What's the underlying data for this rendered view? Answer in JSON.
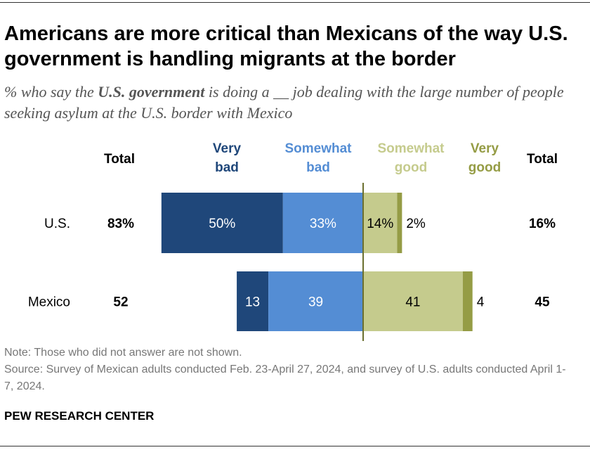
{
  "title": "Americans are more critical than Mexicans of the way U.S. government is handling migrants at the border",
  "subtitle": {
    "pre": "% who say the ",
    "bold": "U.S. government",
    "post": " is doing a __ job dealing with the large number of people seeking asylum at the U.S. border with Mexico"
  },
  "chart_data": {
    "type": "bar",
    "orientation": "horizontal-diverging",
    "categories": [
      "U.S.",
      "Mexico"
    ],
    "series": [
      {
        "name": "Very bad",
        "values": [
          50,
          13
        ],
        "labels": [
          "50%",
          "13"
        ],
        "color": "#1f477a"
      },
      {
        "name": "Somewhat bad",
        "values": [
          33,
          39
        ],
        "labels": [
          "33%",
          "39"
        ],
        "color": "#548dd4"
      },
      {
        "name": "Somewhat good",
        "values": [
          14,
          41
        ],
        "labels": [
          "14%",
          "41"
        ],
        "color": "#c5cb8d"
      },
      {
        "name": "Very good",
        "values": [
          2,
          4
        ],
        "labels": [
          "2%",
          "4"
        ],
        "color": "#959c45"
      }
    ],
    "totals_header": "Total",
    "total_bad": [
      "83%",
      "52"
    ],
    "total_good": [
      "16%",
      "45"
    ],
    "legend_colors": {
      "Very bad": "#1f477a",
      "Somewhat bad": "#548dd4",
      "Somewhat good": "#c5cb8d",
      "Very good": "#959c45"
    }
  },
  "headers": {
    "very_bad": [
      "Very",
      "bad"
    ],
    "somewhat_bad": [
      "Somewhat",
      "bad"
    ],
    "somewhat_good": [
      "Somewhat",
      "good"
    ],
    "very_good": [
      "Very",
      "good"
    ]
  },
  "note": "Note: Those who did not answer are not shown.",
  "source": "Source: Survey of Mexican adults conducted Feb. 23-April 27, 2024, and survey of U.S. adults conducted April 1-7, 2024.",
  "brand": "PEW RESEARCH CENTER"
}
